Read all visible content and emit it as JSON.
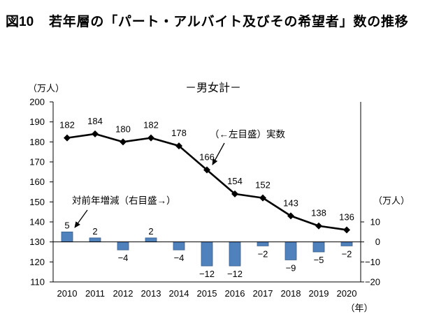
{
  "chart_data": {
    "type": "line",
    "figure_number": "図10",
    "title": "若年層の「パート・アルバイト及びその希望者」数の推移",
    "subtitle": "－男女計－",
    "categories": [
      "2010",
      "2011",
      "2012",
      "2013",
      "2014",
      "2015",
      "2016",
      "2017",
      "2018",
      "2019",
      "2020"
    ],
    "xlabel": "（年）",
    "y_left": {
      "label": "（万人）",
      "ylim": [
        110,
        200
      ],
      "ticks": [
        110,
        120,
        130,
        140,
        150,
        160,
        170,
        180,
        190,
        200
      ]
    },
    "y_right": {
      "label": "（万人）",
      "ylim": [
        -20,
        70
      ],
      "ticks": [
        -20,
        -10,
        0,
        10
      ]
    },
    "series": [
      {
        "name": "（←左目盛）実数",
        "type": "line",
        "y_axis": "left",
        "marker": "diamond",
        "color": "#000000",
        "values": [
          182,
          184,
          180,
          182,
          178,
          166,
          154,
          152,
          143,
          138,
          136
        ]
      },
      {
        "name": "対前年増減（右目盛→）",
        "type": "bar",
        "y_axis": "right",
        "color": "#4F81BD",
        "values": [
          5,
          2,
          -4,
          2,
          -4,
          -12,
          -12,
          -2,
          -9,
          -5,
          -2
        ]
      }
    ],
    "grid": false,
    "legend": "none"
  }
}
